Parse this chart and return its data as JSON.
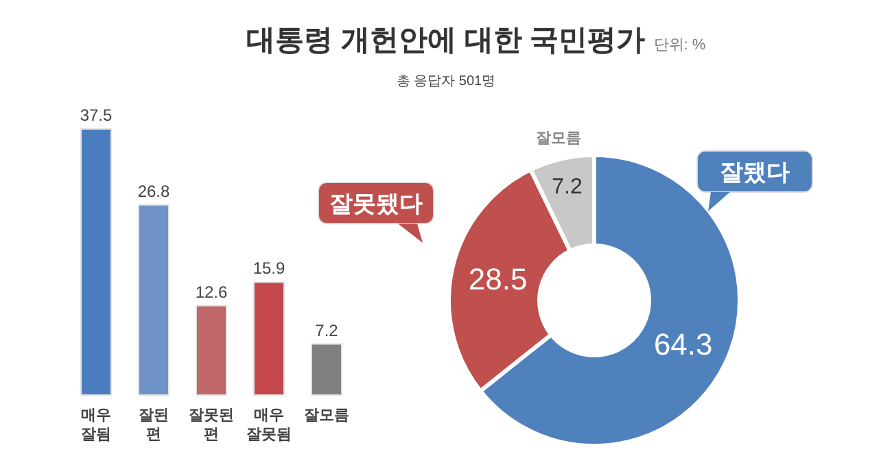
{
  "chart_data": [
    {
      "type": "other",
      "title": "대통령 개헌안에 대한 국민평가",
      "subtitle": "총 응답자 501명",
      "annotations": [
        "단위: %"
      ]
    },
    {
      "type": "bar",
      "categories": [
        "매우\n잘됨",
        "잘된\n편",
        "잘못된\n편",
        "매우\n잘못됨",
        "잘모름"
      ],
      "values": [
        37.5,
        26.8,
        12.6,
        15.9,
        7.2
      ],
      "colors": [
        "#4a7cc0",
        "#6f93c6",
        "#c0676a",
        "#c4474b",
        "#7f7f7f"
      ],
      "data_labels": true
    },
    {
      "type": "donut",
      "categories": [
        "잘됐다",
        "잘못됐다",
        "잘모름"
      ],
      "values": [
        64.3,
        28.5,
        7.2
      ],
      "colors": [
        "#4f81bd",
        "#c0504d",
        "#c8c8c8"
      ],
      "data_labels": true
    }
  ]
}
